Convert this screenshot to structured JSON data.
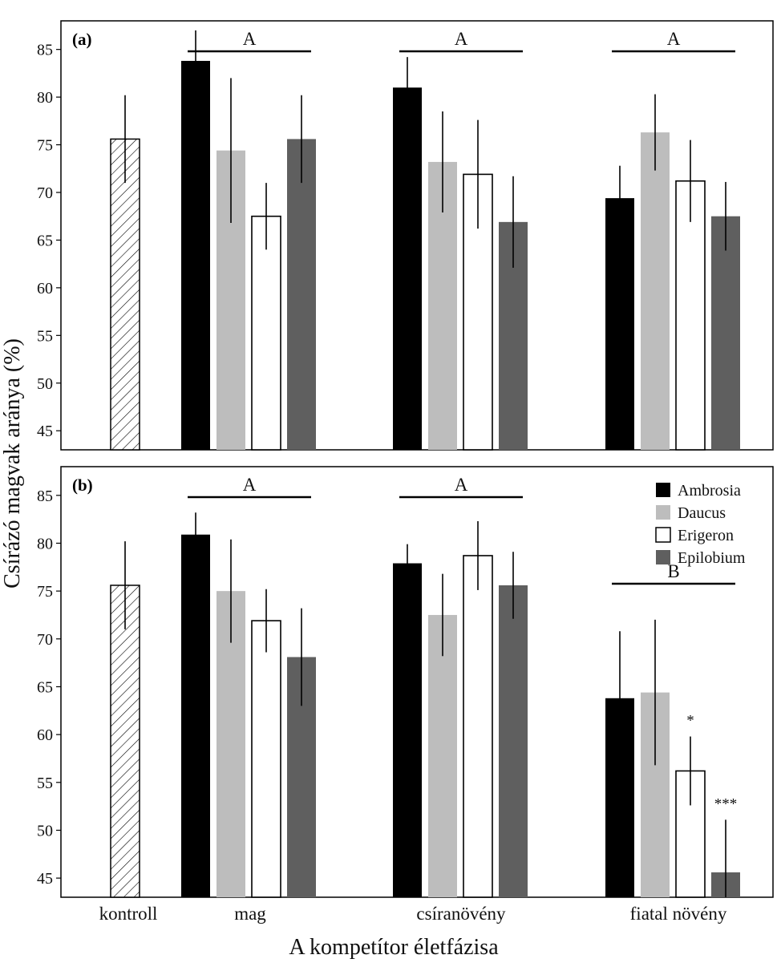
{
  "chart_data": {
    "type": "bar",
    "ylabel": "Csírázó magvak aránya (%)",
    "xlabel": "A kompetítor életfázisa",
    "categories": [
      "kontroll",
      "mag",
      "csíranövény",
      "fiatal növény"
    ],
    "ylim": [
      43,
      88
    ],
    "yticks": [
      45,
      50,
      55,
      60,
      65,
      70,
      75,
      80,
      85
    ],
    "grid": false,
    "legend_position": "top-right",
    "legend": [
      {
        "name": "Ambrosia",
        "color": "#000000"
      },
      {
        "name": "Daucus",
        "color": "#bdbdbd"
      },
      {
        "name": "Erigeron",
        "color": "#ffffff"
      },
      {
        "name": "Epilobium",
        "color": "#5f5f5f"
      }
    ],
    "control": {
      "name": "kontroll",
      "value": 75.6,
      "error": 4.6,
      "fill": "hatched"
    },
    "panels": [
      {
        "label": "(a)",
        "series": [
          {
            "name": "Ambrosia",
            "values": [
              83.8,
              81.0,
              69.4
            ],
            "errors": [
              3.2,
              3.2,
              3.4
            ]
          },
          {
            "name": "Daucus",
            "values": [
              74.4,
              73.2,
              76.3
            ],
            "errors": [
              7.6,
              5.3,
              4.0
            ]
          },
          {
            "name": "Erigeron",
            "values": [
              67.5,
              71.9,
              71.2
            ],
            "errors": [
              3.5,
              5.7,
              4.3
            ]
          },
          {
            "name": "Epilobium",
            "values": [
              75.6,
              66.9,
              67.5
            ],
            "errors": [
              4.6,
              4.8,
              3.6
            ]
          }
        ],
        "group_letters": [
          "A",
          "A",
          "A"
        ],
        "significance": [
          "",
          "",
          "",
          "",
          "",
          "",
          "",
          "",
          "",
          "",
          "",
          ""
        ]
      },
      {
        "label": "(b)",
        "series": [
          {
            "name": "Ambrosia",
            "values": [
              80.9,
              77.9,
              63.8
            ],
            "errors": [
              2.3,
              2.0,
              7.0
            ]
          },
          {
            "name": "Daucus",
            "values": [
              75.0,
              72.5,
              64.4
            ],
            "errors": [
              5.4,
              4.3,
              7.6
            ]
          },
          {
            "name": "Erigeron",
            "values": [
              71.9,
              78.7,
              56.2
            ],
            "errors": [
              3.3,
              3.6,
              3.6
            ]
          },
          {
            "name": "Epilobium",
            "values": [
              68.1,
              75.6,
              45.6
            ],
            "errors": [
              5.1,
              3.5,
              5.5
            ]
          }
        ],
        "group_letters": [
          "A",
          "A",
          "B"
        ],
        "significance": [
          "",
          "",
          "",
          "",
          "",
          "",
          "",
          "",
          "",
          "",
          "*",
          "***"
        ]
      }
    ]
  }
}
